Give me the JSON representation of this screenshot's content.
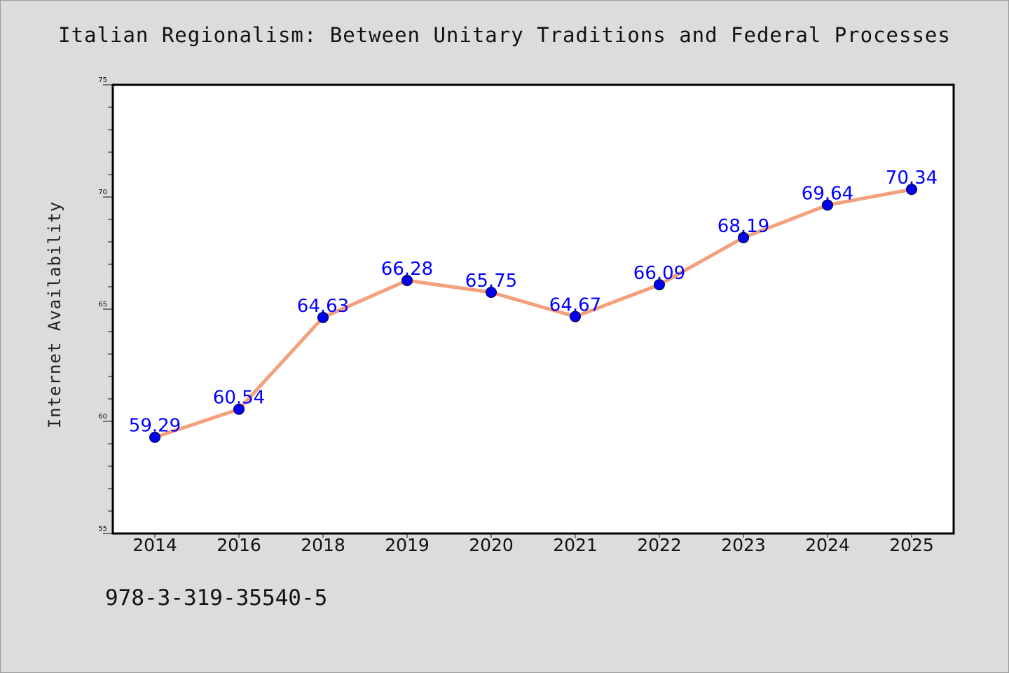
{
  "title": "Italian Regionalism: Between Unitary Traditions and Federal Processes",
  "isbn": "978-3-319-35540-5",
  "chart_data": {
    "type": "line",
    "title": "Italian Regionalism: Between Unitary Traditions and Federal Processes",
    "xlabel": "",
    "ylabel": "Internet Availability",
    "categories": [
      "2014",
      "2016",
      "2018",
      "2019",
      "2020",
      "2021",
      "2022",
      "2023",
      "2024",
      "2025"
    ],
    "series": [
      {
        "values": [
          59.29,
          60.54,
          64.63,
          66.28,
          65.75,
          64.67,
          66.09,
          68.19,
          69.64,
          70.34
        ],
        "data_labels": [
          "59.29",
          "60.54",
          "64.63",
          "66.28",
          "65.75",
          "64.67",
          "66.09",
          "68.19",
          "69.64",
          "70.34"
        ]
      }
    ],
    "ylim": [
      55,
      75
    ],
    "yticks": [
      55,
      60,
      65,
      70,
      75
    ],
    "y_minor_step": 1,
    "grid": false,
    "legend": "none",
    "colors": {
      "line": "#f4a07c",
      "marker": "#0000ee",
      "marker_edge": "#000033",
      "label": "#0000ff",
      "plot_background": "#ffffff",
      "page_background": "#dcdcdc"
    }
  }
}
